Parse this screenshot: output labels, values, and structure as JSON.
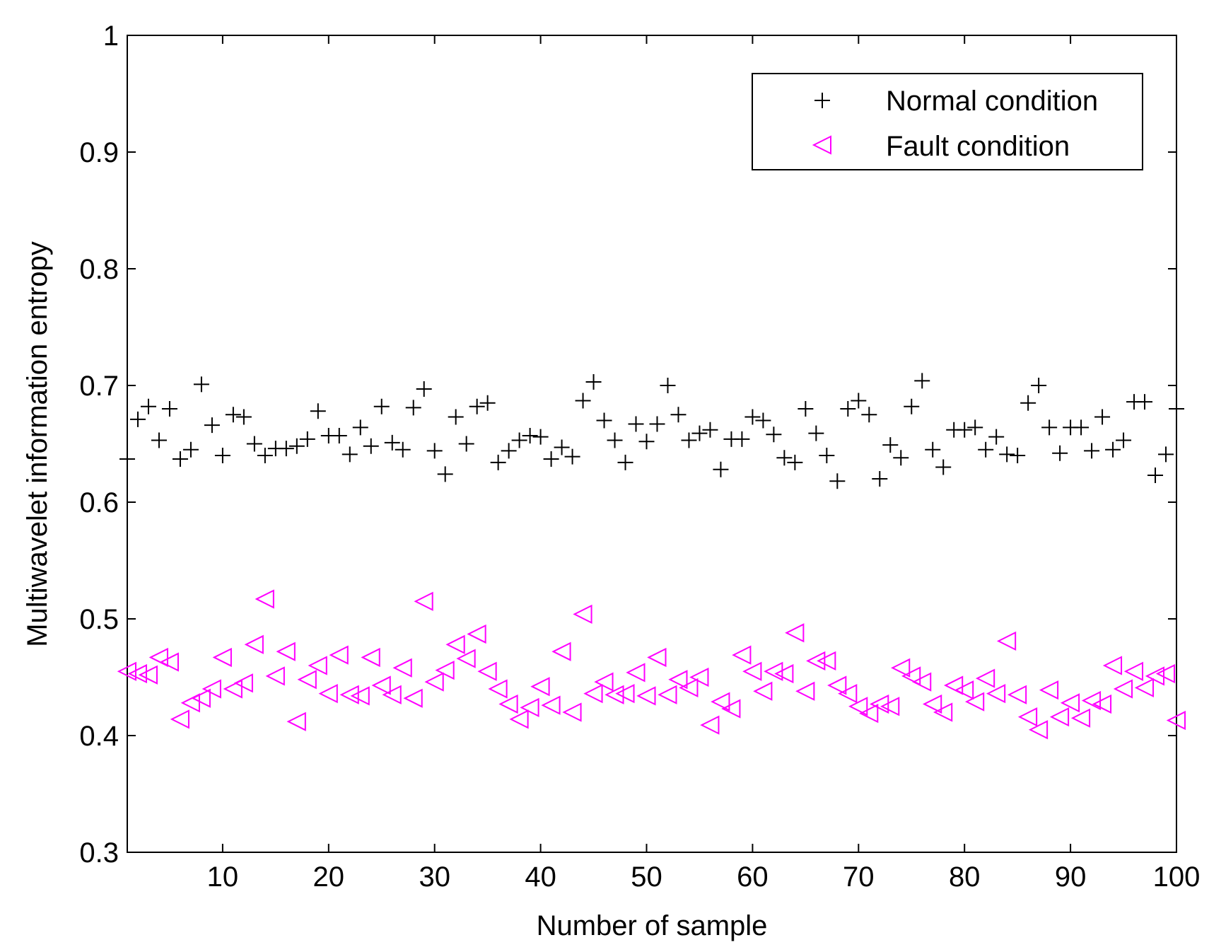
{
  "chart_data": {
    "type": "scatter",
    "title": "",
    "xlabel": "Number of sample",
    "ylabel": "Multiwavelet information entropy",
    "xlim": [
      1,
      100
    ],
    "ylim": [
      0.3,
      1
    ],
    "xticks": [
      10,
      20,
      30,
      40,
      50,
      60,
      70,
      80,
      90,
      100
    ],
    "xtick_labels": [
      "10",
      "20",
      "30",
      "40",
      "50",
      "60",
      "70",
      "80",
      "90",
      "100"
    ],
    "yticks": [
      0.3,
      0.4,
      0.5,
      0.6,
      0.7,
      0.8,
      0.9,
      1
    ],
    "ytick_labels": [
      "0.3",
      "0.4",
      "0.5",
      "0.6",
      "0.7",
      "0.8",
      "0.9",
      "1"
    ],
    "grid": false,
    "legend_position": "top-right",
    "series": [
      {
        "name": "Normal condition",
        "marker": "plus",
        "color": "#000000",
        "x": [
          1,
          2,
          3,
          4,
          5,
          6,
          7,
          8,
          9,
          10,
          11,
          12,
          13,
          14,
          15,
          16,
          17,
          18,
          19,
          20,
          21,
          22,
          23,
          24,
          25,
          26,
          27,
          28,
          29,
          30,
          31,
          32,
          33,
          34,
          35,
          36,
          37,
          38,
          39,
          40,
          41,
          42,
          43,
          44,
          45,
          46,
          47,
          48,
          49,
          50,
          51,
          52,
          53,
          54,
          55,
          56,
          57,
          58,
          59,
          60,
          61,
          62,
          63,
          64,
          65,
          66,
          67,
          68,
          69,
          70,
          71,
          72,
          73,
          74,
          75,
          76,
          77,
          78,
          79,
          80,
          81,
          82,
          83,
          84,
          85,
          86,
          87,
          88,
          89,
          90,
          91,
          92,
          93,
          94,
          95,
          96,
          97,
          98,
          99,
          100
        ],
        "values": [
          0.637,
          0.671,
          0.682,
          0.653,
          0.68,
          0.637,
          0.645,
          0.701,
          0.666,
          0.64,
          0.675,
          0.673,
          0.65,
          0.64,
          0.646,
          0.646,
          0.648,
          0.654,
          0.678,
          0.657,
          0.657,
          0.641,
          0.664,
          0.648,
          0.682,
          0.651,
          0.645,
          0.681,
          0.697,
          0.644,
          0.624,
          0.673,
          0.65,
          0.682,
          0.685,
          0.634,
          0.644,
          0.653,
          0.657,
          0.656,
          0.637,
          0.647,
          0.639,
          0.687,
          0.703,
          0.67,
          0.653,
          0.634,
          0.667,
          0.652,
          0.667,
          0.7,
          0.675,
          0.653,
          0.659,
          0.662,
          0.628,
          0.654,
          0.654,
          0.673,
          0.67,
          0.658,
          0.638,
          0.634,
          0.68,
          0.659,
          0.64,
          0.618,
          0.68,
          0.687,
          0.675,
          0.62,
          0.649,
          0.638,
          0.682,
          0.704,
          0.645,
          0.63,
          0.662,
          0.662,
          0.664,
          0.645,
          0.656,
          0.641,
          0.64,
          0.685,
          0.7,
          0.664,
          0.642,
          0.664,
          0.664,
          0.644,
          0.673,
          0.645,
          0.653,
          0.686,
          0.686,
          0.623,
          0.641,
          0.68
        ]
      },
      {
        "name": "Fault condition",
        "marker": "triangle-left",
        "color": "#ff00ff",
        "x": [
          1,
          2,
          3,
          4,
          5,
          6,
          7,
          8,
          9,
          10,
          11,
          12,
          13,
          14,
          15,
          16,
          17,
          18,
          19,
          20,
          21,
          22,
          23,
          24,
          25,
          26,
          27,
          28,
          29,
          30,
          31,
          32,
          33,
          34,
          35,
          36,
          37,
          38,
          39,
          40,
          41,
          42,
          43,
          44,
          45,
          46,
          47,
          48,
          49,
          50,
          51,
          52,
          53,
          54,
          55,
          56,
          57,
          58,
          59,
          60,
          61,
          62,
          63,
          64,
          65,
          66,
          67,
          68,
          69,
          70,
          71,
          72,
          73,
          74,
          75,
          76,
          77,
          78,
          79,
          80,
          81,
          82,
          83,
          84,
          85,
          86,
          87,
          88,
          89,
          90,
          91,
          92,
          93,
          94,
          95,
          96,
          97,
          98,
          99,
          100
        ],
        "values": [
          0.455,
          0.453,
          0.452,
          0.467,
          0.463,
          0.414,
          0.428,
          0.432,
          0.44,
          0.467,
          0.44,
          0.445,
          0.478,
          0.517,
          0.451,
          0.472,
          0.412,
          0.448,
          0.46,
          0.436,
          0.469,
          0.435,
          0.434,
          0.467,
          0.443,
          0.435,
          0.458,
          0.432,
          0.515,
          0.446,
          0.456,
          0.478,
          0.466,
          0.487,
          0.455,
          0.44,
          0.427,
          0.414,
          0.424,
          0.442,
          0.426,
          0.472,
          0.42,
          0.504,
          0.436,
          0.446,
          0.435,
          0.436,
          0.454,
          0.434,
          0.467,
          0.435,
          0.448,
          0.441,
          0.45,
          0.409,
          0.429,
          0.423,
          0.469,
          0.455,
          0.438,
          0.455,
          0.453,
          0.488,
          0.438,
          0.464,
          0.464,
          0.443,
          0.436,
          0.425,
          0.419,
          0.427,
          0.425,
          0.458,
          0.451,
          0.446,
          0.427,
          0.42,
          0.443,
          0.439,
          0.429,
          0.449,
          0.436,
          0.481,
          0.435,
          0.416,
          0.405,
          0.439,
          0.416,
          0.428,
          0.415,
          0.43,
          0.427,
          0.46,
          0.44,
          0.455,
          0.441,
          0.451,
          0.453,
          0.413
        ]
      }
    ]
  }
}
